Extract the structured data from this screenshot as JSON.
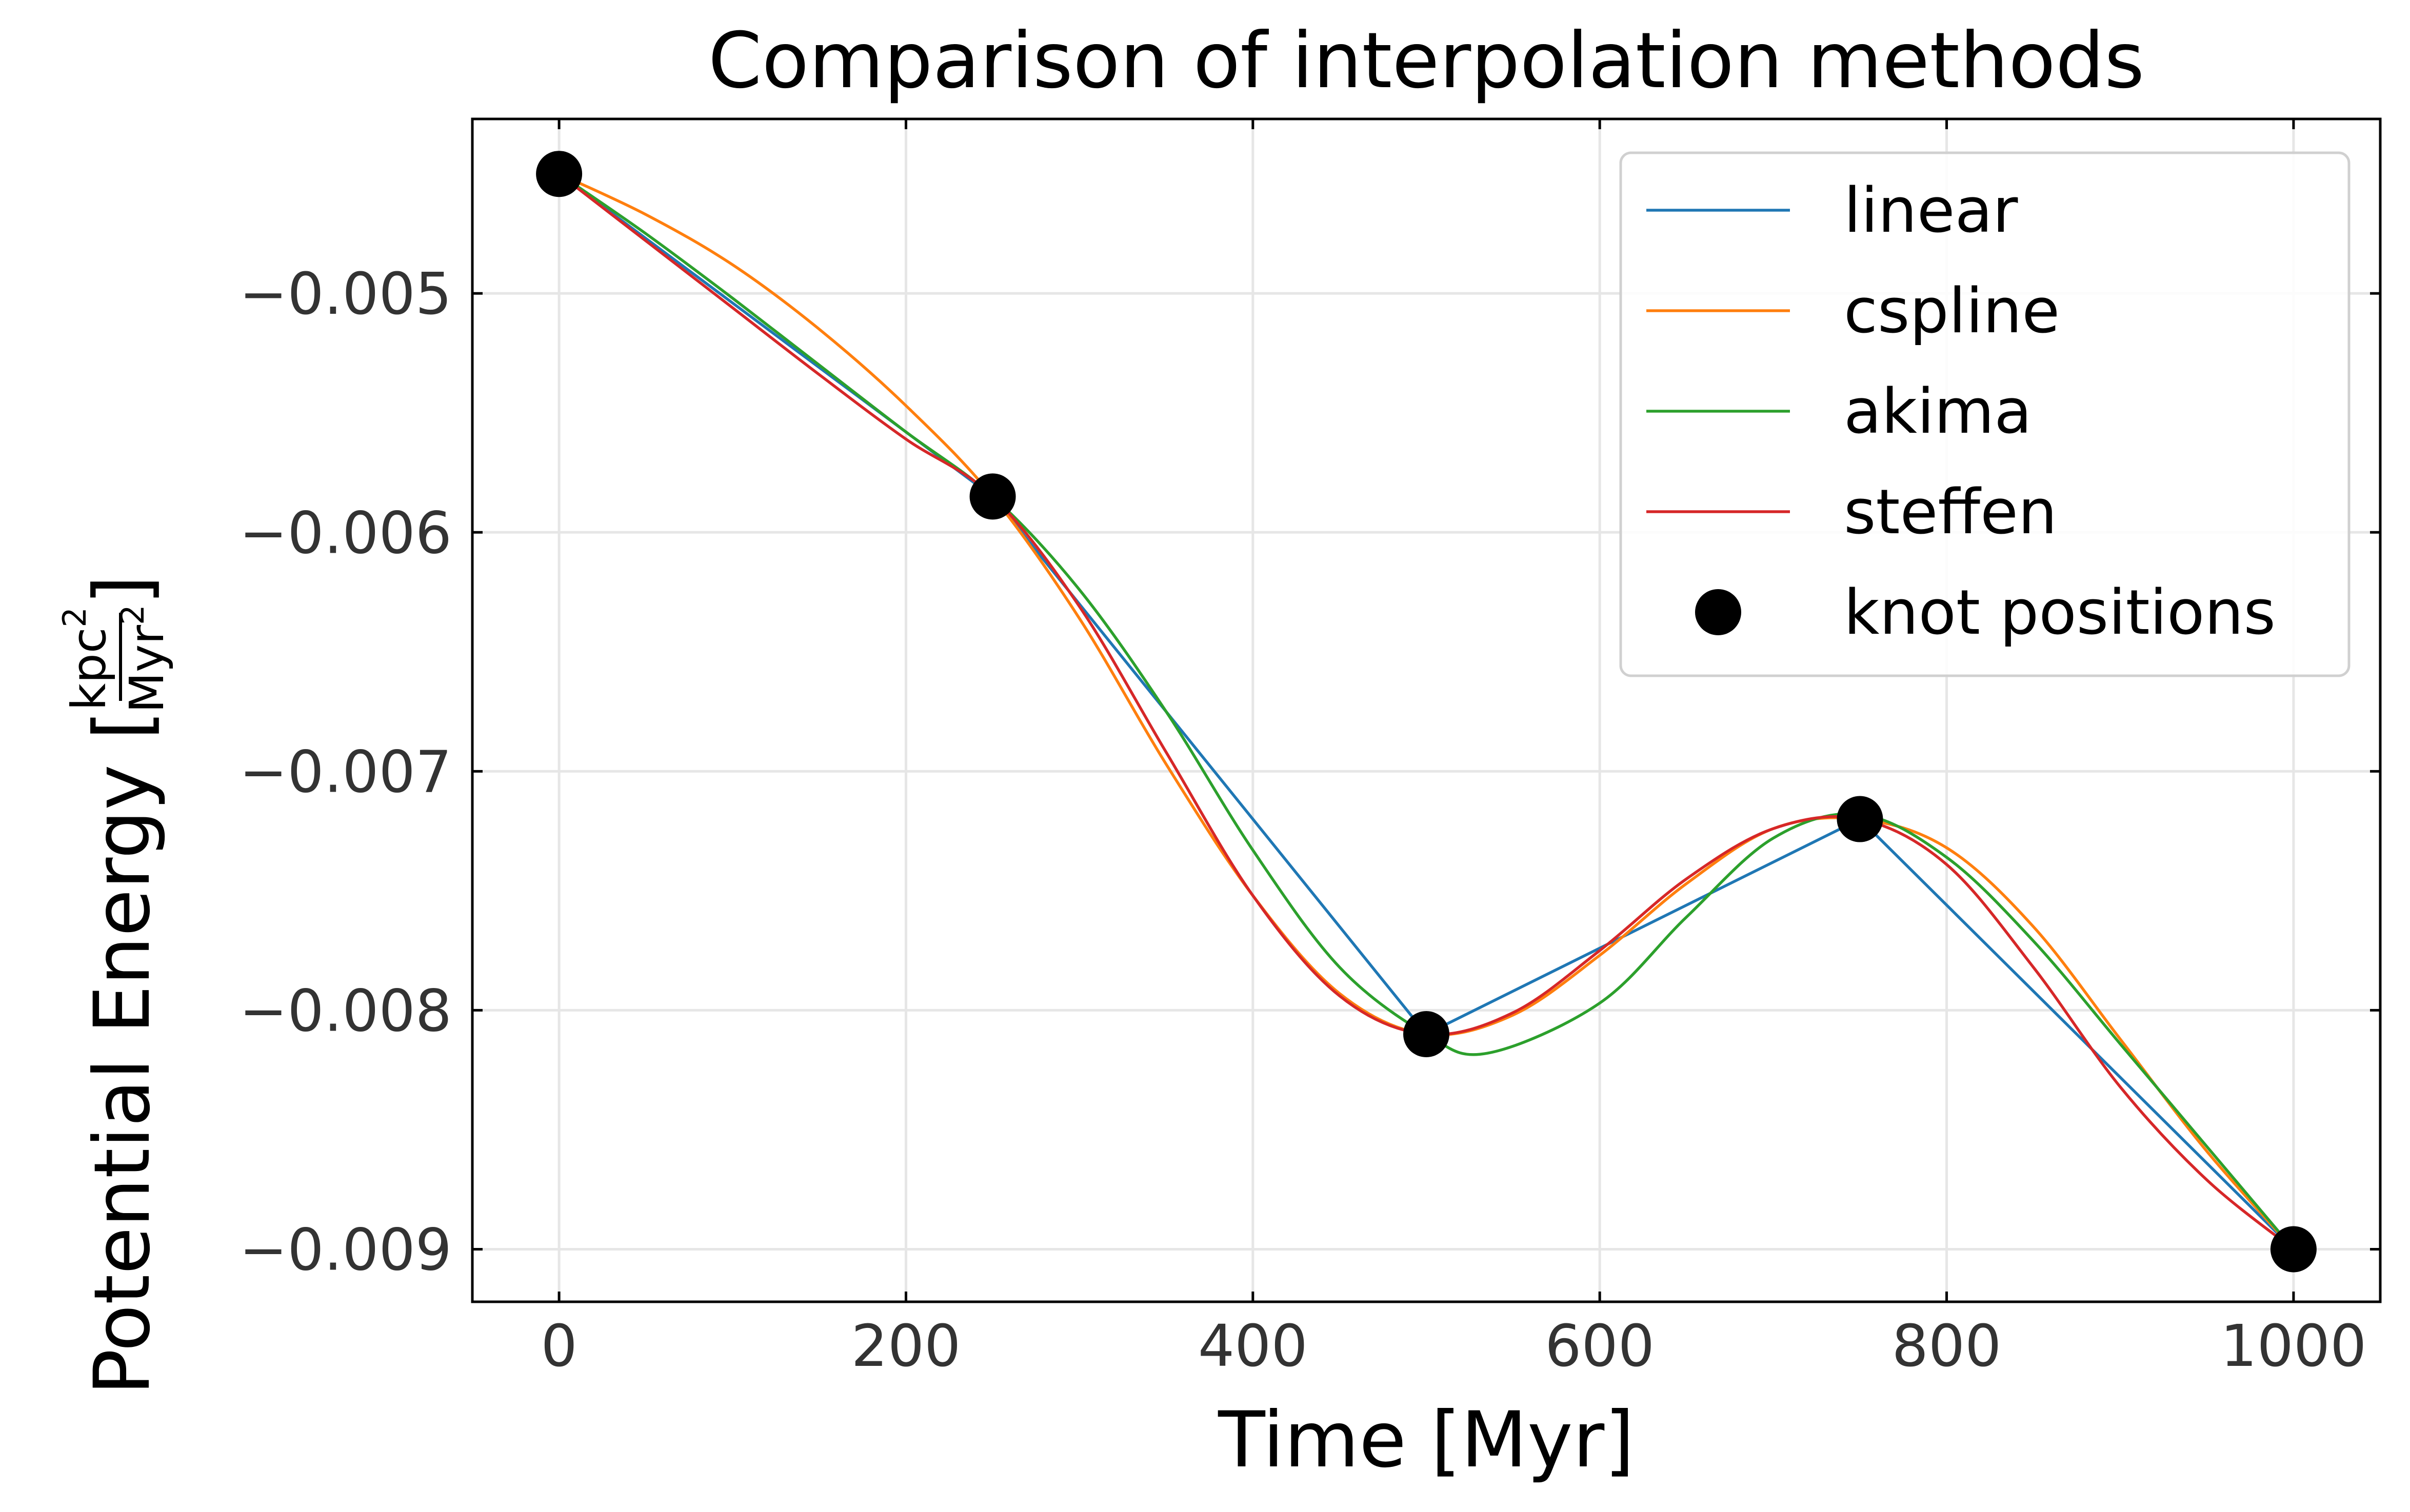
{
  "chart_data": {
    "type": "line",
    "title": "Comparison of interpolation methods",
    "xlabel": "Time [Myr]",
    "ylabel": {
      "prefix": "Potential Energy [",
      "numerator": "kpc",
      "numerator_exp": "2",
      "denominator": "Myr",
      "denominator_exp": "2",
      "suffix": "]"
    },
    "xlim": [
      -50,
      1050
    ],
    "ylim": [
      -0.00922,
      -0.00427
    ],
    "x_ticks": [
      0,
      200,
      400,
      600,
      800,
      1000
    ],
    "x_tick_labels": [
      "0",
      "200",
      "400",
      "600",
      "800",
      "1000"
    ],
    "y_ticks": [
      -0.005,
      -0.006,
      -0.007,
      -0.008,
      -0.009
    ],
    "y_tick_labels": [
      "−0.005",
      "−0.006",
      "−0.007",
      "−0.008",
      "−0.009"
    ],
    "grid": true,
    "legend_position": "top-right",
    "knots": {
      "name": "knot positions",
      "color": "#000000",
      "x": [
        0,
        250,
        500,
        750,
        1000
      ],
      "y": [
        -0.0045,
        -0.00585,
        -0.0081,
        -0.0072,
        -0.009
      ]
    },
    "series": [
      {
        "name": "linear",
        "color": "#1f77b4",
        "x": [
          0,
          250,
          500,
          750,
          1000
        ],
        "y": [
          -0.0045,
          -0.00585,
          -0.0081,
          -0.0072,
          -0.009
        ]
      },
      {
        "name": "cspline",
        "color": "#ff7f0e",
        "x": [
          0,
          50,
          100,
          150,
          200,
          250,
          300,
          350,
          400,
          450,
          500,
          550,
          600,
          650,
          700,
          750,
          800,
          850,
          900,
          950,
          1000
        ],
        "y": [
          -0.0045,
          -0.00467,
          -0.00488,
          -0.00515,
          -0.00547,
          -0.00585,
          -0.00636,
          -0.00697,
          -0.00752,
          -0.00793,
          -0.0081,
          -0.00802,
          -0.00777,
          -0.00747,
          -0.00724,
          -0.0072,
          -0.00732,
          -0.00765,
          -0.00812,
          -0.00859,
          -0.009
        ]
      },
      {
        "name": "akima",
        "color": "#2ca02c",
        "x": [
          0,
          50,
          100,
          150,
          200,
          250,
          300,
          350,
          400,
          450,
          500,
          535,
          600,
          650,
          700,
          750,
          800,
          850,
          900,
          950,
          1000
        ],
        "y": [
          -0.0045,
          -0.00475,
          -0.00502,
          -0.0053,
          -0.00558,
          -0.00585,
          -0.00624,
          -0.00675,
          -0.00733,
          -0.00782,
          -0.0081,
          -0.00818,
          -0.00797,
          -0.00761,
          -0.00728,
          -0.00718,
          -0.00736,
          -0.00771,
          -0.00814,
          -0.00857,
          -0.009
        ]
      },
      {
        "name": "steffen",
        "color": "#d62728",
        "x": [
          0,
          50,
          100,
          150,
          200,
          250,
          300,
          350,
          400,
          450,
          500,
          550,
          600,
          650,
          700,
          750,
          800,
          850,
          900,
          950,
          1000
        ],
        "y": [
          -0.0045,
          -0.00478,
          -0.00506,
          -0.00534,
          -0.00561,
          -0.00585,
          -0.00631,
          -0.00692,
          -0.00752,
          -0.00794,
          -0.0081,
          -0.00801,
          -0.00775,
          -0.00745,
          -0.00724,
          -0.0072,
          -0.00739,
          -0.00782,
          -0.00832,
          -0.00871,
          -0.009
        ]
      }
    ]
  }
}
